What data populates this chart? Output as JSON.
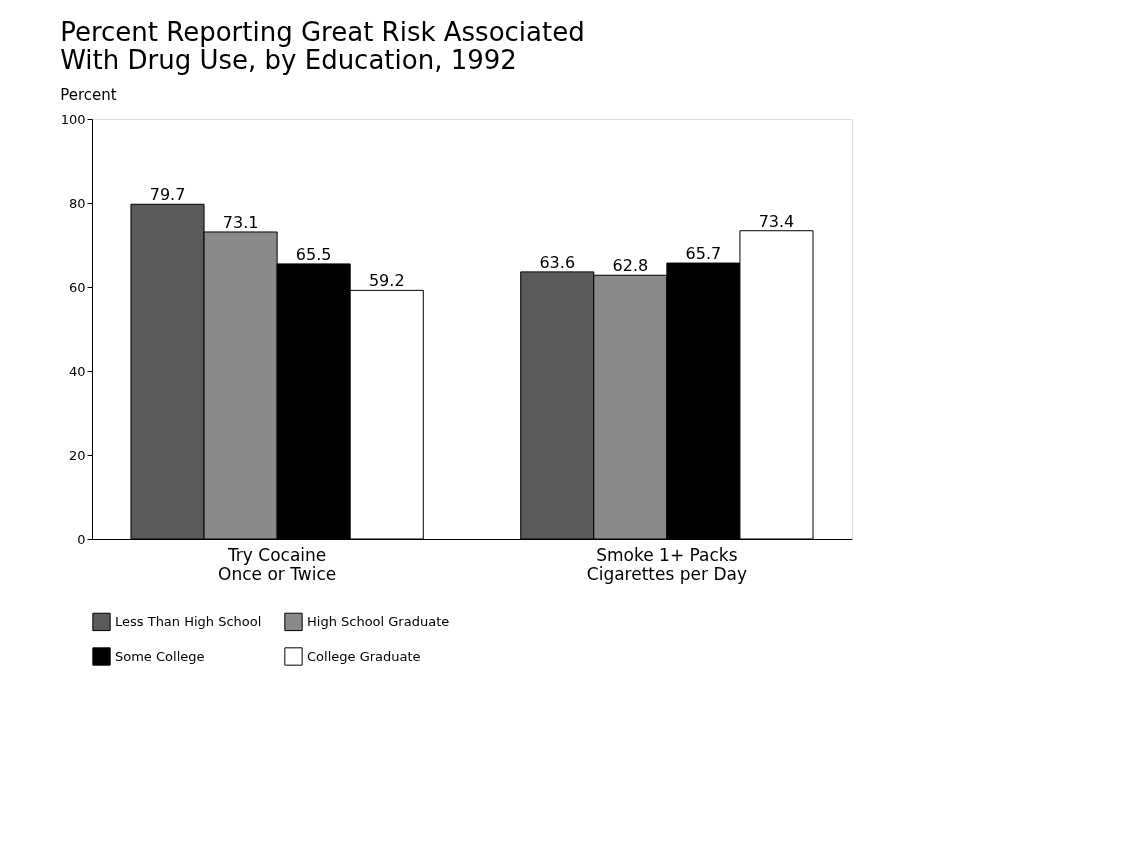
{
  "chart_data": {
    "type": "bar",
    "title": "Percent Reporting Great Risk Associated\nWith Drug Use, by Education, 1992",
    "ylabel": "Percent",
    "categories": [
      "Try Cocaine\nOnce or Twice",
      "Smoke 1+ Packs\nCigarettes per Day"
    ],
    "series": [
      {
        "name": "Less Than High School",
        "color": "#5a5a5a",
        "values": [
          79.7,
          63.6
        ]
      },
      {
        "name": "High School Graduate",
        "color": "#8a8a8a",
        "values": [
          73.1,
          62.8
        ]
      },
      {
        "name": "Some College",
        "color": "#000000",
        "values": [
          65.5,
          65.7
        ]
      },
      {
        "name": "College Graduate",
        "color": "#ffffff",
        "values": [
          59.2,
          73.4
        ]
      }
    ],
    "ylim": [
      0,
      100
    ],
    "yticks": [
      0,
      20,
      40,
      60,
      80,
      100
    ],
    "grid": false,
    "legend": "bottom",
    "data_labels": true
  }
}
